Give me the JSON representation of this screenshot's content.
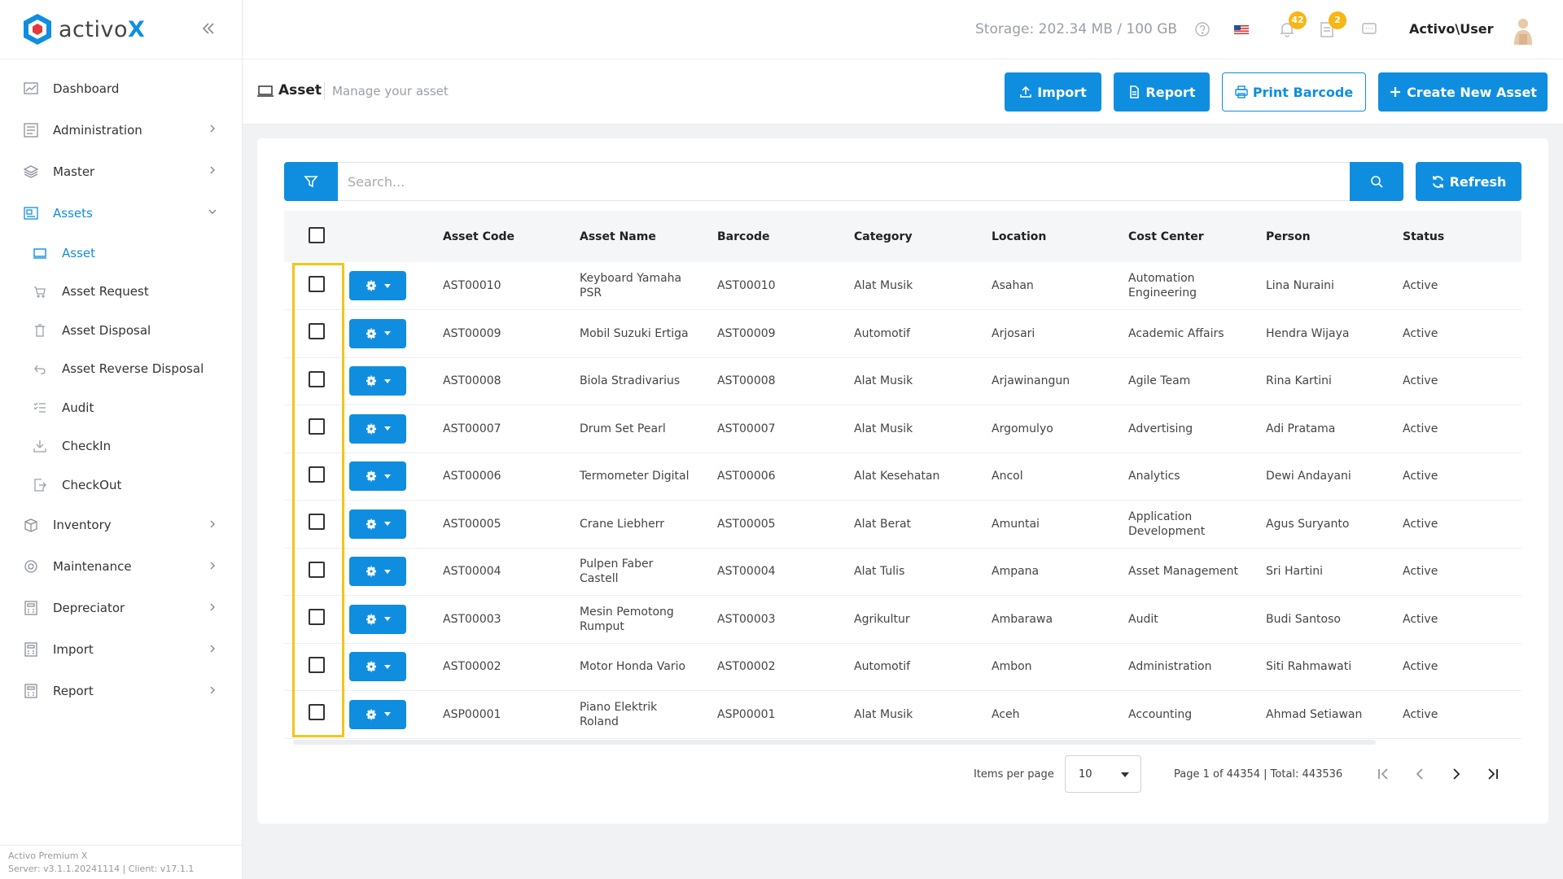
{
  "app": {
    "logo_text_prefix": "activo",
    "logo_text_accent": "X",
    "footer_line1": "Activo Premium X",
    "footer_line2": "Server: v3.1.1.20241114 | Client: v17.1.1"
  },
  "sidebar": {
    "items": [
      {
        "label": "Dashboard",
        "icon": "chart-icon"
      },
      {
        "label": "Administration",
        "icon": "document-icon"
      },
      {
        "label": "Master",
        "icon": "layers-icon"
      },
      {
        "label": "Assets",
        "icon": "assets-icon"
      },
      {
        "label": "Inventory",
        "icon": "box-icon"
      },
      {
        "label": "Maintenance",
        "icon": "gear-icon"
      },
      {
        "label": "Depreciator",
        "icon": "calculator-icon"
      },
      {
        "label": "Import",
        "icon": "calculator-icon"
      },
      {
        "label": "Report",
        "icon": "calculator-icon"
      }
    ],
    "asset_sub": [
      {
        "label": "Asset"
      },
      {
        "label": "Asset Request"
      },
      {
        "label": "Asset Disposal"
      },
      {
        "label": "Asset Reverse Disposal"
      },
      {
        "label": "Audit"
      },
      {
        "label": "CheckIn"
      },
      {
        "label": "CheckOut"
      }
    ]
  },
  "topbar": {
    "storage": "Storage: 202.34 MB / 100 GB",
    "notif_count": "42",
    "task_count": "2",
    "user": "Activo\\User"
  },
  "page": {
    "title": "Asset",
    "subtitle": "Manage your asset",
    "import_label": "Import",
    "report_label": "Report",
    "print_label": "Print Barcode",
    "create_label": "Create New Asset"
  },
  "search": {
    "placeholder": "Search...",
    "refresh_label": "Refresh"
  },
  "table": {
    "columns": [
      "Asset Code",
      "Asset Name",
      "Barcode",
      "Category",
      "Location",
      "Cost Center",
      "Person",
      "Status"
    ],
    "rows": [
      [
        "AST00010",
        "Keyboard Yamaha PSR",
        "AST00010",
        "Alat Musik",
        "Asahan",
        "Automation Engineering",
        "Lina Nuraini",
        "Active"
      ],
      [
        "AST00009",
        "Mobil Suzuki Ertiga",
        "AST00009",
        "Automotif",
        "Arjosari",
        "Academic Affairs",
        "Hendra Wijaya",
        "Active"
      ],
      [
        "AST00008",
        "Biola Stradivarius",
        "AST00008",
        "Alat Musik",
        "Arjawinangun",
        "Agile Team",
        "Rina Kartini",
        "Active"
      ],
      [
        "AST00007",
        "Drum Set Pearl",
        "AST00007",
        "Alat Musik",
        "Argomulyo",
        "Advertising",
        "Adi Pratama",
        "Active"
      ],
      [
        "AST00006",
        "Termometer Digital",
        "AST00006",
        "Alat Kesehatan",
        "Ancol",
        "Analytics",
        "Dewi Andayani",
        "Active"
      ],
      [
        "AST00005",
        "Crane Liebherr",
        "AST00005",
        "Alat Berat",
        "Amuntai",
        "Application Development",
        "Agus Suryanto",
        "Active"
      ],
      [
        "AST00004",
        "Pulpen Faber Castell",
        "AST00004",
        "Alat Tulis",
        "Ampana",
        "Asset Management",
        "Sri Hartini",
        "Active"
      ],
      [
        "AST00003",
        "Mesin Pemotong Rumput",
        "AST00003",
        "Agrikultur",
        "Ambarawa",
        "Audit",
        "Budi Santoso",
        "Active"
      ],
      [
        "AST00002",
        "Motor Honda Vario",
        "AST00002",
        "Automotif",
        "Ambon",
        "Administration",
        "Siti Rahmawati",
        "Active"
      ],
      [
        "ASP00001",
        "Piano Elektrik Roland",
        "ASP00001",
        "Alat Musik",
        "Aceh",
        "Accounting",
        "Ahmad Setiawan",
        "Active"
      ]
    ]
  },
  "pager": {
    "items_label": "Items per page",
    "items_value": "10",
    "info": "Page 1 of 44354 | Total: 443536"
  },
  "colors": {
    "accent": "#0f8ee0",
    "highlight": "#f5c518",
    "badge": "#f7b614"
  }
}
